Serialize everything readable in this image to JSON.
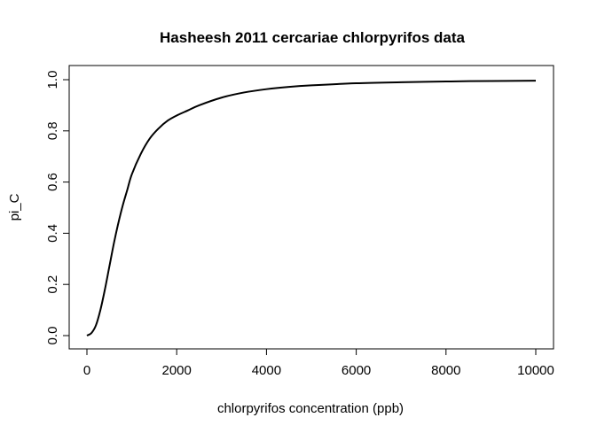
{
  "chart_data": {
    "type": "line",
    "title": "Hasheesh 2011 cercariae chlorpyrifos data",
    "xlabel": "chlorpyrifos concentration (ppb)",
    "ylabel": "pi_C",
    "xlim": [
      0,
      10000
    ],
    "ylim": [
      0,
      1
    ],
    "x_ticks": [
      0,
      2000,
      4000,
      6000,
      8000,
      10000
    ],
    "x_tick_labels": [
      "0",
      "2000",
      "4000",
      "6000",
      "8000",
      "10000"
    ],
    "y_ticks": [
      0,
      0.2,
      0.4,
      0.6,
      0.8,
      1
    ],
    "y_tick_labels": [
      "0.0",
      "0.2",
      "0.4",
      "0.6",
      "0.8",
      "1.0"
    ],
    "grid": false,
    "legend": "none",
    "series": [
      {
        "color": "#000000",
        "x": [
          0,
          100,
          200,
          300,
          400,
          500,
          600,
          700,
          800,
          900,
          1000,
          1200,
          1400,
          1600,
          1800,
          2000,
          2250,
          2500,
          3000,
          3500,
          4000,
          4500,
          5000,
          6000,
          7000,
          8000,
          9000,
          10000
        ],
        "y": [
          0.0,
          0.01,
          0.04,
          0.1,
          0.18,
          0.27,
          0.36,
          0.44,
          0.51,
          0.57,
          0.63,
          0.71,
          0.77,
          0.81,
          0.84,
          0.86,
          0.88,
          0.9,
          0.93,
          0.95,
          0.963,
          0.972,
          0.978,
          0.986,
          0.99,
          0.993,
          0.995,
          0.996
        ]
      }
    ]
  }
}
